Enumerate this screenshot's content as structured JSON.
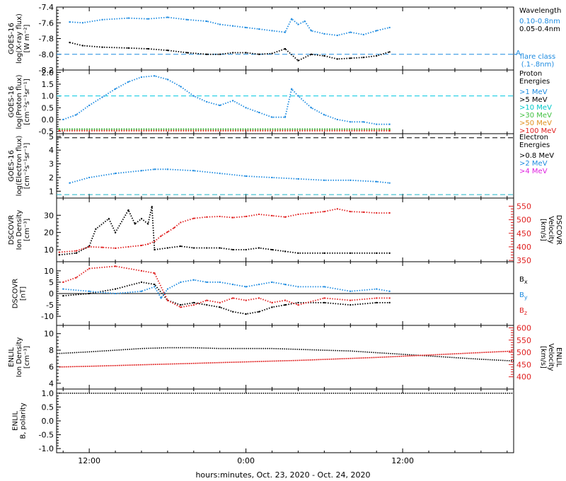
{
  "figure": {
    "xlabel": "hours:minutes, Oct. 23, 2020 - Oct. 24, 2020",
    "xticks": [
      "12:00",
      "0:00",
      "12:00"
    ],
    "time_range_hours": [
      -14.5,
      20.5
    ],
    "tick_hours": [
      -12,
      0,
      12
    ]
  },
  "chart_data": [
    {
      "id": "xray",
      "type": "scatter",
      "ylabel": "GOES-16\nlog(X-ray flux)\n[W m⁻²]",
      "ylim": [
        -8.2,
        -7.4
      ],
      "yticks": [
        -8.2,
        -8.0,
        -7.8,
        -7.6,
        -7.4
      ],
      "yticklabels": [
        "-8.2",
        "-8.0",
        "-7.8",
        "-7.6",
        "-7.4"
      ],
      "legend_title": "Wavelength",
      "series": [
        {
          "name": "0.10-0.8nm",
          "color": "#1e8be0",
          "x": [
            -13.5,
            -12.5,
            -11,
            -9,
            -7.5,
            -6,
            -4.5,
            -3,
            -2,
            -1,
            0,
            1,
            2,
            3,
            3.5,
            4,
            4.5,
            5,
            6,
            7,
            8,
            9,
            10,
            11
          ],
          "y": [
            -7.59,
            -7.6,
            -7.56,
            -7.54,
            -7.55,
            -7.53,
            -7.56,
            -7.58,
            -7.62,
            -7.64,
            -7.66,
            -7.68,
            -7.7,
            -7.72,
            -7.55,
            -7.62,
            -7.58,
            -7.7,
            -7.74,
            -7.76,
            -7.72,
            -7.75,
            -7.7,
            -7.66
          ]
        },
        {
          "name": "0.05-0.4nm",
          "color": "#000000",
          "x": [
            -13.5,
            -12.5,
            -11,
            -9,
            -7.5,
            -6,
            -4.5,
            -3,
            -2,
            -1,
            0,
            1,
            2,
            3,
            4,
            5,
            6,
            7,
            8,
            9,
            10,
            11
          ],
          "y": [
            -7.85,
            -7.89,
            -7.91,
            -7.92,
            -7.93,
            -7.95,
            -7.98,
            -8.0,
            -8.0,
            -7.98,
            -7.98,
            -8.0,
            -7.99,
            -7.93,
            -8.08,
            -8.0,
            -8.02,
            -8.06,
            -8.05,
            -8.04,
            -8.02,
            -7.97
          ]
        }
      ],
      "reference_lines": [
        {
          "label": "A",
          "y": -8.0,
          "color": "#1e8be0",
          "style": "dashed"
        }
      ],
      "annotation": "flare class\n(.1-.8nm)"
    },
    {
      "id": "proton",
      "type": "scatter",
      "ylabel": "GOES-16\nlog(Proton flux)\n[cm⁻²s⁻¹sr⁻¹]",
      "ylim": [
        -0.6,
        2.1
      ],
      "yticks": [
        -0.5,
        0.0,
        0.5,
        1.0,
        1.5,
        2.0
      ],
      "yticklabels": [
        "-0.5",
        "0.0",
        "0.5",
        "1.0",
        "1.5",
        "2.0"
      ],
      "legend_title": "Proton\nEnergies",
      "series": [
        {
          "name": ">1 MeV",
          "color": "#1e8be0",
          "x": [
            -14,
            -13,
            -12,
            -11,
            -10,
            -9,
            -8,
            -7,
            -6,
            -5,
            -4,
            -3,
            -2,
            -1,
            0,
            1,
            2,
            3,
            3.5,
            4,
            5,
            6,
            7,
            8,
            9,
            10,
            11
          ],
          "y": [
            0.0,
            0.2,
            0.6,
            0.95,
            1.3,
            1.6,
            1.8,
            1.85,
            1.7,
            1.4,
            1.0,
            0.75,
            0.6,
            0.8,
            0.5,
            0.3,
            0.1,
            0.1,
            1.3,
            1.0,
            0.5,
            0.2,
            0.0,
            -0.1,
            -0.1,
            -0.2,
            -0.2
          ]
        },
        {
          "name": ">5 MeV",
          "color": "#000000",
          "x": [
            -14.3,
            11
          ],
          "y": [
            -0.42,
            -0.42
          ]
        },
        {
          "name": ">10 MeV",
          "color": "#00c8c8",
          "x": [
            -14.3,
            11
          ],
          "y": [
            -0.44,
            -0.44
          ]
        },
        {
          "name": ">30 MeV",
          "color": "#40c040",
          "x": [
            -14.3,
            11
          ],
          "y": [
            -0.4,
            -0.4
          ]
        },
        {
          "name": ">50 MeV",
          "color": "#e09020",
          "x": [
            -14.3,
            11
          ],
          "y": [
            -0.46,
            -0.46
          ]
        },
        {
          "name": ">100 MeV",
          "color": "#e02020",
          "x": [
            -14.3,
            11
          ],
          "y": [
            -0.48,
            -0.48
          ]
        }
      ],
      "reference_lines": [
        {
          "y": 1.0,
          "color": "#00c8e0",
          "style": "dashed"
        }
      ]
    },
    {
      "id": "electron",
      "type": "scatter",
      "ylabel": "GOES-16\nlog(Electron flux)\n[cm⁻²s⁻¹sr⁻¹]",
      "ylim": [
        0.5,
        5.2
      ],
      "yticks": [
        1,
        2,
        3,
        4,
        5
      ],
      "yticklabels": [
        "1",
        "2",
        "3",
        "4",
        "5"
      ],
      "legend_title": "Electron\nEnergies",
      "series": [
        {
          "name": ">0.8 MeV",
          "color": "#000000",
          "x": [],
          "y": []
        },
        {
          "name": ">2 MeV",
          "color": "#1e8be0",
          "x": [
            -13.5,
            -12,
            -10,
            -8,
            -7,
            -6,
            -4,
            -2,
            0,
            2,
            4,
            6,
            8,
            10,
            11
          ],
          "y": [
            1.6,
            2.0,
            2.3,
            2.5,
            2.6,
            2.6,
            2.5,
            2.3,
            2.1,
            2.0,
            1.9,
            1.8,
            1.8,
            1.7,
            1.6
          ]
        },
        {
          "name": ">4 MeV",
          "color": "#e020e0",
          "x": [],
          "y": []
        }
      ],
      "reference_lines": [
        {
          "y": 4.9,
          "color": "#000000",
          "style": "dashed"
        },
        {
          "y": 0.75,
          "color": "#1eb4c8",
          "style": "dashed"
        }
      ]
    },
    {
      "id": "dscovr_density_velocity",
      "type": "scatter",
      "ylabel": "DSCOVR\nIon Density\n[cm⁻³]",
      "ylim": [
        3,
        40
      ],
      "yticks": [
        10,
        20,
        30
      ],
      "yticklabels": [
        "10",
        "20",
        "30"
      ],
      "y2label": "DSCOVR\nVelocity\n[km/s]",
      "y2lim": [
        345,
        580
      ],
      "y2ticks": [
        350,
        400,
        450,
        500,
        550
      ],
      "y2ticklabels": [
        "350",
        "400",
        "450",
        "500",
        "550"
      ],
      "series": [
        {
          "name": "density",
          "color": "#000000",
          "axis": "left",
          "x": [
            -14.3,
            -13,
            -12,
            -11.5,
            -10.5,
            -10,
            -9,
            -8.5,
            -8,
            -7.5,
            -7.2,
            -7,
            -6,
            -5,
            -4,
            -3,
            -2,
            -1,
            0,
            1,
            2,
            3,
            4,
            6,
            8,
            10,
            11
          ],
          "y": [
            7,
            8,
            12,
            22,
            28,
            20,
            33,
            25,
            28,
            25,
            35,
            10,
            11,
            12,
            11,
            11,
            11,
            10,
            10,
            11,
            10,
            9,
            8,
            8,
            8,
            8,
            8
          ]
        },
        {
          "name": "velocity",
          "color": "#e02020",
          "axis": "right",
          "x": [
            -14.3,
            -13,
            -12,
            -11,
            -10,
            -9,
            -8,
            -7.5,
            -7,
            -6.5,
            -6,
            -5.5,
            -5,
            -4,
            -3,
            -2,
            -1,
            0,
            1,
            2,
            3,
            4,
            5,
            6,
            7,
            8,
            9,
            10,
            11
          ],
          "y": [
            380,
            385,
            400,
            398,
            395,
            400,
            405,
            410,
            420,
            440,
            455,
            470,
            490,
            505,
            510,
            512,
            508,
            512,
            520,
            515,
            510,
            520,
            525,
            530,
            540,
            530,
            528,
            525,
            525
          ]
        }
      ]
    },
    {
      "id": "dscovr_field",
      "type": "scatter",
      "ylabel": "DSCOVR\n[nT]",
      "ylim": [
        -14,
        14
      ],
      "yticks": [
        -10,
        -5,
        0,
        5,
        10
      ],
      "yticklabels": [
        "-10",
        "-5",
        "0",
        "5",
        "10"
      ],
      "series": [
        {
          "name": "Bx",
          "color": "#000000",
          "x": [
            -14,
            -12,
            -10,
            -8,
            -7,
            -6,
            -5,
            -4,
            -3,
            -2,
            -1,
            0,
            1,
            2,
            3,
            4,
            6,
            8,
            10,
            11
          ],
          "y": [
            -1,
            0,
            2,
            5,
            4,
            -3,
            -5,
            -4,
            -5,
            -6,
            -8,
            -9,
            -8,
            -6,
            -5,
            -4,
            -4,
            -5,
            -4,
            -4
          ]
        },
        {
          "name": "By",
          "color": "#1e8be0",
          "x": [
            -14,
            -12,
            -10,
            -8,
            -7,
            -6.5,
            -6,
            -5,
            -4,
            -3,
            -2,
            -1,
            0,
            1,
            2,
            3,
            4,
            6,
            8,
            10,
            11
          ],
          "y": [
            2,
            1,
            0,
            1,
            3,
            -2,
            2,
            5,
            6,
            5,
            5,
            4,
            3,
            4,
            5,
            4,
            3,
            3,
            1,
            2,
            1
          ]
        },
        {
          "name": "Bz",
          "color": "#e02020",
          "x": [
            -14,
            -13,
            -12,
            -10,
            -8,
            -7,
            -6,
            -5,
            -4,
            -3,
            -2,
            -1,
            0,
            1,
            2,
            3,
            4,
            6,
            8,
            10,
            11
          ],
          "y": [
            5,
            7,
            11,
            12,
            10,
            9,
            -3,
            -6,
            -5,
            -3,
            -4,
            -2,
            -3,
            -2,
            -4,
            -3,
            -5,
            -2,
            -3,
            -2,
            -2
          ]
        }
      ],
      "zero_line": true
    },
    {
      "id": "enlil_density_velocity",
      "type": "line",
      "ylabel": "ENLIL\nIon Density\n[cm⁻³]",
      "ylim": [
        3.3,
        11
      ],
      "yticks": [
        4,
        6,
        8,
        10
      ],
      "yticklabels": [
        "4",
        "6",
        "8",
        "10"
      ],
      "y2label": "ENLIL\nVelocity\n[km/s]",
      "y2lim": [
        350,
        610
      ],
      "y2ticks": [
        400,
        450,
        500,
        550,
        600
      ],
      "y2ticklabels": [
        "400",
        "450",
        "500",
        "550",
        "600"
      ],
      "series": [
        {
          "name": "density",
          "color": "#000000",
          "axis": "left",
          "x": [
            -14.3,
            -12,
            -10,
            -8,
            -6,
            -4,
            -2,
            0,
            2,
            4,
            6,
            8,
            10,
            12,
            14,
            16,
            18,
            20.5
          ],
          "y": [
            7.6,
            7.8,
            8.0,
            8.2,
            8.3,
            8.3,
            8.2,
            8.2,
            8.2,
            8.1,
            8.0,
            7.9,
            7.7,
            7.5,
            7.3,
            7.1,
            6.9,
            6.7
          ]
        },
        {
          "name": "velocity",
          "color": "#e02020",
          "axis": "right",
          "x": [
            -14.3,
            -12,
            -10,
            -8,
            -6,
            -4,
            -2,
            0,
            2,
            4,
            6,
            8,
            10,
            12,
            14,
            16,
            18,
            20.5
          ],
          "y": [
            440,
            443,
            446,
            449,
            452,
            455,
            458,
            461,
            464,
            467,
            471,
            475,
            479,
            484,
            489,
            494,
            499,
            505
          ]
        }
      ]
    },
    {
      "id": "enlil_polarity",
      "type": "line",
      "ylabel": "ENLIL\nB, polarity",
      "ylim": [
        -1.15,
        1.15
      ],
      "yticks": [
        -1.0,
        -0.5,
        0.0,
        0.5,
        1.0
      ],
      "yticklabels": [
        "-1.0",
        "-0.5",
        "0.0",
        "0.5",
        "1.0"
      ],
      "series": [
        {
          "name": "polarity",
          "color": "#000000",
          "x": [
            -14.3,
            20.5
          ],
          "y": [
            1.0,
            1.0
          ]
        }
      ]
    }
  ]
}
